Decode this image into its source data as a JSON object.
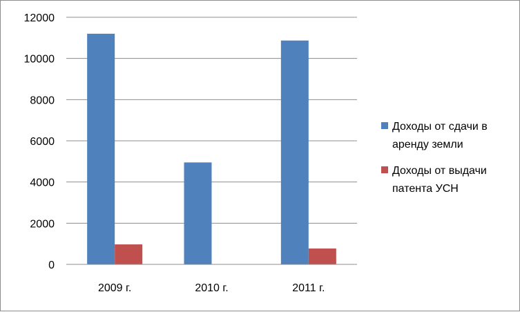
{
  "chart_data": {
    "type": "bar",
    "categories": [
      "2009 г.",
      "2010 г.",
      "2011 г."
    ],
    "series": [
      {
        "name": "Доходы от сдачи в аренду земли",
        "values": [
          11200,
          4950,
          10870
        ],
        "color": "#4F81BD",
        "legend_lines": [
          "Доходы от сдачи в",
          "аренду земли"
        ]
      },
      {
        "name": "Доходы от выдачи патента УСН",
        "values": [
          970,
          0,
          770
        ],
        "color": "#C0504D",
        "legend_lines": [
          "Доходы от выдачи",
          "патента УСН"
        ]
      }
    ],
    "ylim": [
      0,
      12000
    ],
    "yticks": [
      "0",
      "2000",
      "4000",
      "6000",
      "8000",
      "10000",
      "12000"
    ],
    "grid": true,
    "legend": "right"
  }
}
